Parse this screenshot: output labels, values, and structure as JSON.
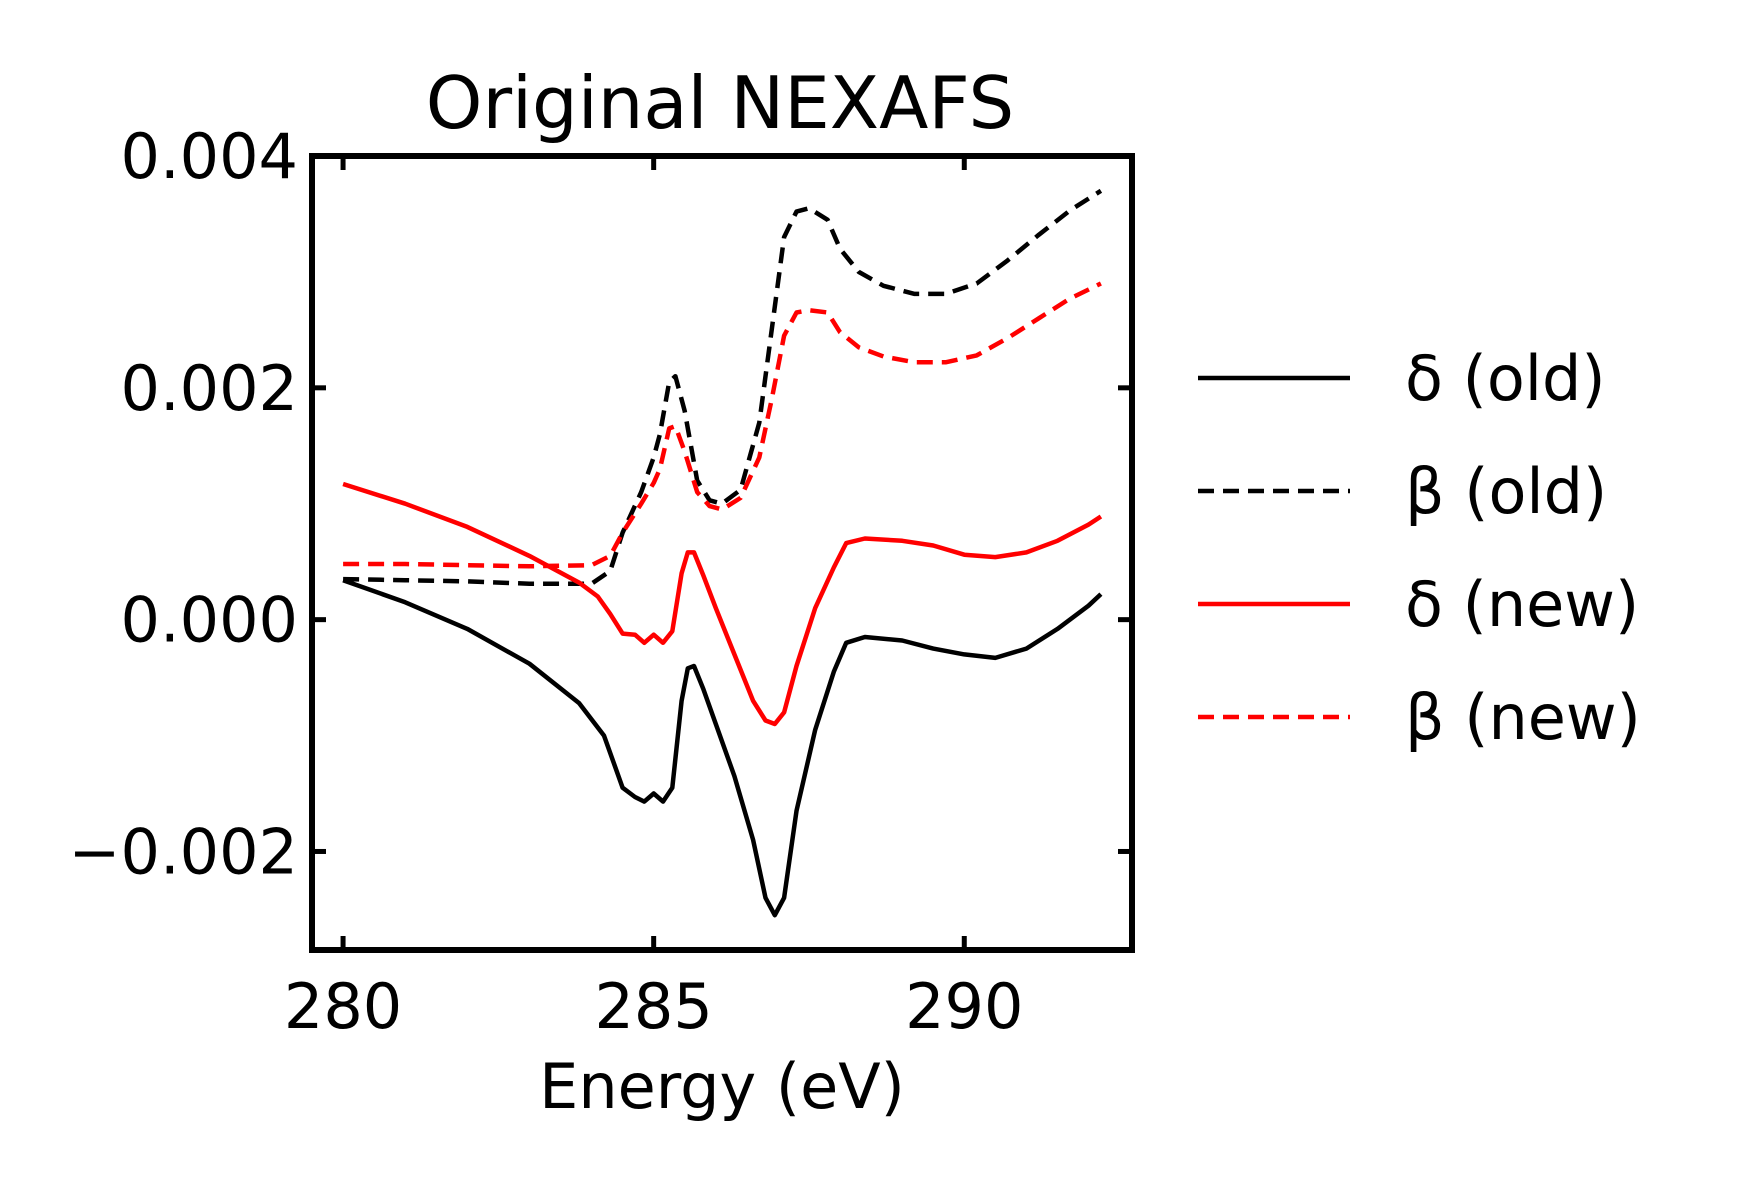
{
  "chart_data": {
    "type": "line",
    "title": "Original NEXAFS",
    "xlabel": "Energy (eV)",
    "ylabel": "",
    "xlim": [
      279.5,
      292.7
    ],
    "ylim": [
      -0.00285,
      0.004
    ],
    "x_ticks": [
      280,
      285,
      290
    ],
    "x_tick_labels": [
      "280",
      "285",
      "290"
    ],
    "y_ticks": [
      -0.002,
      0.0,
      0.002,
      0.004
    ],
    "y_tick_labels": [
      "−0.002",
      "0.000",
      "0.002",
      "0.004"
    ],
    "grid": false,
    "legend_position": "right-outside",
    "series": [
      {
        "name": "δ (old)",
        "color": "#000000",
        "dash": "solid",
        "points": [
          [
            280.0,
            0.00034
          ],
          [
            281.0,
            0.00015
          ],
          [
            282.0,
            -8e-05
          ],
          [
            283.0,
            -0.00038
          ],
          [
            283.8,
            -0.00072
          ],
          [
            284.2,
            -0.001
          ],
          [
            284.5,
            -0.00145
          ],
          [
            284.7,
            -0.00153
          ],
          [
            284.85,
            -0.00157
          ],
          [
            285.0,
            -0.0015
          ],
          [
            285.15,
            -0.00157
          ],
          [
            285.3,
            -0.00145
          ],
          [
            285.45,
            -0.0007
          ],
          [
            285.55,
            -0.00042
          ],
          [
            285.65,
            -0.0004
          ],
          [
            285.8,
            -0.0006
          ],
          [
            286.0,
            -0.0009
          ],
          [
            286.3,
            -0.00135
          ],
          [
            286.6,
            -0.0019
          ],
          [
            286.8,
            -0.0024
          ],
          [
            286.95,
            -0.00255
          ],
          [
            287.1,
            -0.0024
          ],
          [
            287.3,
            -0.00165
          ],
          [
            287.6,
            -0.00095
          ],
          [
            287.9,
            -0.00045
          ],
          [
            288.1,
            -0.0002
          ],
          [
            288.4,
            -0.00015
          ],
          [
            289.0,
            -0.00018
          ],
          [
            289.5,
            -0.00025
          ],
          [
            290.0,
            -0.0003
          ],
          [
            290.5,
            -0.00033
          ],
          [
            291.0,
            -0.00025
          ],
          [
            291.5,
            -8e-05
          ],
          [
            292.0,
            0.00012
          ],
          [
            292.2,
            0.00022
          ]
        ]
      },
      {
        "name": "β (old)",
        "color": "#000000",
        "dash": "dashed",
        "points": [
          [
            280.0,
            0.00035
          ],
          [
            281.0,
            0.00034
          ],
          [
            282.0,
            0.00033
          ],
          [
            283.0,
            0.00031
          ],
          [
            284.0,
            0.00031
          ],
          [
            284.3,
            0.00042
          ],
          [
            284.5,
            0.00075
          ],
          [
            284.8,
            0.0011
          ],
          [
            285.0,
            0.0014
          ],
          [
            285.1,
            0.0016
          ],
          [
            285.25,
            0.00205
          ],
          [
            285.35,
            0.0021
          ],
          [
            285.5,
            0.0018
          ],
          [
            285.7,
            0.0012
          ],
          [
            285.9,
            0.00103
          ],
          [
            286.1,
            0.001
          ],
          [
            286.4,
            0.00112
          ],
          [
            286.7,
            0.0017
          ],
          [
            286.9,
            0.0025
          ],
          [
            287.1,
            0.0033
          ],
          [
            287.3,
            0.00352
          ],
          [
            287.5,
            0.00355
          ],
          [
            287.8,
            0.00345
          ],
          [
            288.0,
            0.0032
          ],
          [
            288.3,
            0.003
          ],
          [
            288.7,
            0.00288
          ],
          [
            289.2,
            0.00281
          ],
          [
            289.7,
            0.00281
          ],
          [
            290.2,
            0.0029
          ],
          [
            290.7,
            0.0031
          ],
          [
            291.2,
            0.00332
          ],
          [
            291.7,
            0.00353
          ],
          [
            292.2,
            0.0037
          ]
        ]
      },
      {
        "name": "δ (new)",
        "color": "#ff0000",
        "dash": "solid",
        "points": [
          [
            280.0,
            0.00117
          ],
          [
            281.0,
            0.001
          ],
          [
            282.0,
            0.0008
          ],
          [
            283.0,
            0.00055
          ],
          [
            283.8,
            0.00032
          ],
          [
            284.1,
            0.0002
          ],
          [
            284.3,
            5e-05
          ],
          [
            284.5,
            -0.00012
          ],
          [
            284.7,
            -0.00013
          ],
          [
            284.85,
            -0.0002
          ],
          [
            285.0,
            -0.00013
          ],
          [
            285.15,
            -0.0002
          ],
          [
            285.3,
            -0.0001
          ],
          [
            285.45,
            0.0004
          ],
          [
            285.55,
            0.00058
          ],
          [
            285.65,
            0.00058
          ],
          [
            285.8,
            0.00038
          ],
          [
            286.0,
            0.0001
          ],
          [
            286.3,
            -0.0003
          ],
          [
            286.6,
            -0.0007
          ],
          [
            286.8,
            -0.00087
          ],
          [
            286.95,
            -0.0009
          ],
          [
            287.1,
            -0.0008
          ],
          [
            287.3,
            -0.0004
          ],
          [
            287.6,
            0.0001
          ],
          [
            287.9,
            0.00045
          ],
          [
            288.1,
            0.00066
          ],
          [
            288.4,
            0.0007
          ],
          [
            289.0,
            0.00068
          ],
          [
            289.5,
            0.00064
          ],
          [
            290.0,
            0.00056
          ],
          [
            290.5,
            0.00054
          ],
          [
            291.0,
            0.00058
          ],
          [
            291.5,
            0.00068
          ],
          [
            292.0,
            0.00082
          ],
          [
            292.2,
            0.00089
          ]
        ]
      },
      {
        "name": "β (new)",
        "color": "#ff0000",
        "dash": "dashed",
        "points": [
          [
            280.0,
            0.00048
          ],
          [
            281.0,
            0.00048
          ],
          [
            282.0,
            0.00047
          ],
          [
            283.0,
            0.00046
          ],
          [
            284.0,
            0.00047
          ],
          [
            284.3,
            0.00055
          ],
          [
            284.5,
            0.00075
          ],
          [
            284.8,
            0.001
          ],
          [
            285.0,
            0.00118
          ],
          [
            285.1,
            0.0013
          ],
          [
            285.25,
            0.00165
          ],
          [
            285.35,
            0.00167
          ],
          [
            285.5,
            0.00145
          ],
          [
            285.7,
            0.0011
          ],
          [
            285.9,
            0.00098
          ],
          [
            286.1,
            0.00095
          ],
          [
            286.4,
            0.00105
          ],
          [
            286.7,
            0.0014
          ],
          [
            286.9,
            0.0019
          ],
          [
            287.1,
            0.00245
          ],
          [
            287.3,
            0.00265
          ],
          [
            287.5,
            0.00267
          ],
          [
            287.8,
            0.00265
          ],
          [
            288.0,
            0.00248
          ],
          [
            288.3,
            0.00235
          ],
          [
            288.7,
            0.00227
          ],
          [
            289.2,
            0.00222
          ],
          [
            289.7,
            0.00222
          ],
          [
            290.2,
            0.00228
          ],
          [
            290.7,
            0.00243
          ],
          [
            291.2,
            0.0026
          ],
          [
            291.7,
            0.00277
          ],
          [
            292.2,
            0.0029
          ]
        ]
      }
    ]
  }
}
